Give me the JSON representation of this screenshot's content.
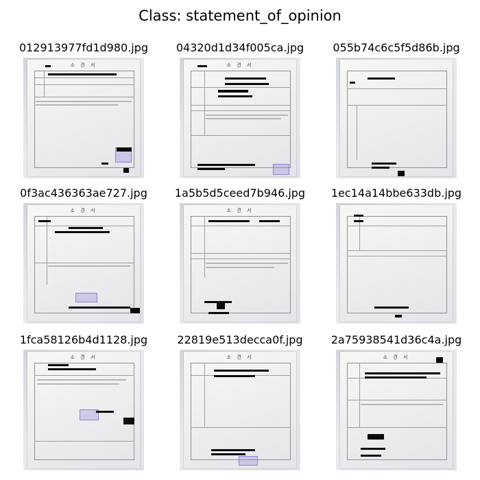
{
  "header": {
    "title": "Class: statement_of_opinion"
  },
  "document_title_text": "소 견 서",
  "thumbnails": [
    {
      "filename": "012913977fd1d980.jpg"
    },
    {
      "filename": "04320d1d34f005ca.jpg"
    },
    {
      "filename": "055b74c6c5f5d86b.jpg"
    },
    {
      "filename": "0f3ac436363ae727.jpg"
    },
    {
      "filename": "1a5b5d5ceed7b946.jpg"
    },
    {
      "filename": "1ec14a14bbe633db.jpg"
    },
    {
      "filename": "1fca58126b4d1128.jpg"
    },
    {
      "filename": "22819e513decca0f.jpg"
    },
    {
      "filename": "2a75938541d36c4a.jpg"
    }
  ]
}
